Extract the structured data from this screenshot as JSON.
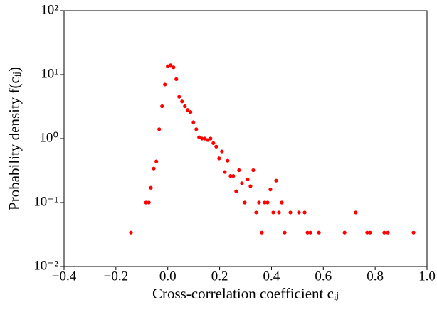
{
  "chart_data": {
    "type": "scatter",
    "x_label": "Cross-correlation coefficient cᵢⱼ",
    "y_label": "Probability density f(cᵢⱼ)",
    "color": "#ff0000",
    "log_y": true,
    "xlim": [
      -0.4,
      1.0
    ],
    "ylim": [
      0.01,
      100
    ],
    "xticks": [
      {
        "value": -0.4,
        "label": "−0.4"
      },
      {
        "value": -0.2,
        "label": "−0.2"
      },
      {
        "value": 0.0,
        "label": "0.0"
      },
      {
        "value": 0.2,
        "label": "0.2"
      },
      {
        "value": 0.4,
        "label": "0.4"
      },
      {
        "value": 0.6,
        "label": "0.6"
      },
      {
        "value": 0.8,
        "label": "0.8"
      },
      {
        "value": 1.0,
        "label": "1.0"
      }
    ],
    "yticks": [
      {
        "value": 0.01,
        "label": "10⁻²"
      },
      {
        "value": 0.1,
        "label": "10⁻¹"
      },
      {
        "value": 1,
        "label": "10⁰"
      },
      {
        "value": 10,
        "label": "10¹"
      },
      {
        "value": 100,
        "label": "10²"
      }
    ],
    "x": [
      -0.142,
      -0.084,
      -0.073,
      -0.065,
      -0.054,
      -0.044,
      -0.033,
      -0.022,
      -0.011,
      0.0,
      0.011,
      0.022,
      0.033,
      0.044,
      0.055,
      0.066,
      0.077,
      0.088,
      0.099,
      0.11,
      0.121,
      0.132,
      0.143,
      0.154,
      0.165,
      0.176,
      0.187,
      0.198,
      0.209,
      0.22,
      0.231,
      0.242,
      0.253,
      0.264,
      0.275,
      0.286,
      0.297,
      0.308,
      0.319,
      0.33,
      0.341,
      0.352,
      0.363,
      0.374,
      0.385,
      0.396,
      0.407,
      0.418,
      0.429,
      0.44,
      0.451,
      0.473,
      0.506,
      0.528,
      0.539,
      0.55,
      0.583,
      0.682,
      0.725,
      0.769,
      0.78,
      0.835,
      0.849,
      0.948
    ],
    "values": [
      0.034,
      0.1,
      0.1,
      0.17,
      0.34,
      0.44,
      1.4,
      3.2,
      7.0,
      13.5,
      14,
      13,
      8.5,
      4.5,
      3.8,
      3.2,
      2.8,
      2.6,
      1.8,
      1.4,
      1.05,
      1.0,
      1.0,
      0.95,
      1.0,
      0.85,
      0.75,
      0.49,
      0.63,
      0.3,
      0.45,
      0.26,
      0.26,
      0.15,
      0.32,
      0.2,
      0.1,
      0.23,
      0.18,
      0.32,
      0.07,
      0.1,
      0.034,
      0.1,
      0.1,
      0.16,
      0.07,
      0.22,
      0.07,
      0.1,
      0.034,
      0.07,
      0.07,
      0.07,
      0.034,
      0.034,
      0.034,
      0.034,
      0.07,
      0.034,
      0.034,
      0.034,
      0.034,
      0.034
    ]
  }
}
